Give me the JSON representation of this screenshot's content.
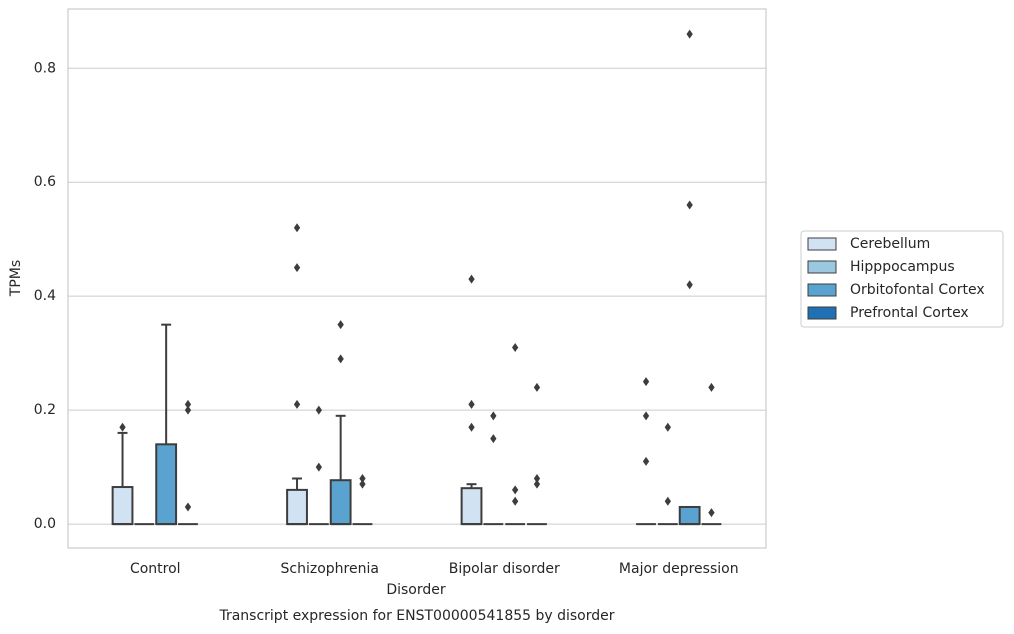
{
  "chart_data": {
    "type": "box",
    "title": "Transcript expression for ENST00000541855 by disorder",
    "xlabel": "Disorder",
    "ylabel": "TPMs",
    "categories": [
      "Control",
      "Schizophrenia",
      "Bipolar disorder",
      "Major depression"
    ],
    "ylim": [
      -0.042,
      0.904
    ],
    "yticks": [
      {
        "value": 0,
        "label": "0.0"
      },
      0.2,
      0.4,
      0.6,
      0.8
    ],
    "grid": true,
    "legend": "right",
    "series": [
      {
        "name": "Cerebellum",
        "color": "#d1e2f3",
        "boxes": [
          {
            "q1": 0,
            "median": 0,
            "q3": 0.065,
            "whislo": 0,
            "whishi": 0.16,
            "fliers": [
              0.17
            ]
          },
          {
            "q1": 0,
            "median": 0,
            "q3": 0.06,
            "whislo": 0,
            "whishi": 0.08,
            "fliers": [
              0.21,
              0.45,
              0.52
            ]
          },
          {
            "q1": 0,
            "median": 0,
            "q3": 0.063,
            "whislo": 0,
            "whishi": 0.07,
            "fliers": [
              0.17,
              0.21,
              0.43
            ]
          },
          {
            "q1": 0,
            "median": 0,
            "q3": 0,
            "whislo": 0,
            "whishi": 0,
            "fliers": [
              0.11,
              0.19,
              0.25
            ]
          }
        ]
      },
      {
        "name": "Hipppocampus",
        "color": "#9ac8e0",
        "boxes": [
          {
            "q1": 0,
            "median": 0,
            "q3": 0,
            "whislo": 0,
            "whishi": 0,
            "fliers": []
          },
          {
            "q1": 0,
            "median": 0,
            "q3": 0,
            "whislo": 0,
            "whishi": 0,
            "fliers": [
              0.1,
              0.2
            ]
          },
          {
            "q1": 0,
            "median": 0,
            "q3": 0,
            "whislo": 0,
            "whishi": 0,
            "fliers": [
              0.15,
              0.19
            ]
          },
          {
            "q1": 0,
            "median": 0,
            "q3": 0,
            "whislo": 0,
            "whishi": 0,
            "fliers": [
              0.04,
              0.17
            ]
          }
        ]
      },
      {
        "name": "Orbitofontal Cortex",
        "color": "#5aa2cf",
        "boxes": [
          {
            "q1": 0,
            "median": 0,
            "q3": 0.14,
            "whislo": 0,
            "whishi": 0.35,
            "fliers": []
          },
          {
            "q1": 0,
            "median": 0,
            "q3": 0.077,
            "whislo": 0,
            "whishi": 0.19,
            "fliers": [
              0.29,
              0.35
            ]
          },
          {
            "q1": 0,
            "median": 0,
            "q3": 0,
            "whislo": 0,
            "whishi": 0,
            "fliers": [
              0.04,
              0.06,
              0.31
            ]
          },
          {
            "q1": 0,
            "median": 0,
            "q3": 0.03,
            "whislo": 0,
            "whishi": 0.03,
            "fliers": [
              0.42,
              0.56,
              0.86
            ]
          }
        ]
      },
      {
        "name": "Prefrontal Cortex",
        "color": "#2070b4",
        "boxes": [
          {
            "q1": 0,
            "median": 0,
            "q3": 0,
            "whislo": 0,
            "whishi": 0,
            "fliers": [
              0.03,
              0.2,
              0.21
            ]
          },
          {
            "q1": 0,
            "median": 0,
            "q3": 0,
            "whislo": 0,
            "whishi": 0,
            "fliers": [
              0.07,
              0.08
            ]
          },
          {
            "q1": 0,
            "median": 0,
            "q3": 0,
            "whislo": 0,
            "whishi": 0,
            "fliers": [
              0.07,
              0.08,
              0.24
            ]
          },
          {
            "q1": 0,
            "median": 0,
            "q3": 0,
            "whislo": 0,
            "whishi": 0,
            "fliers": [
              0.02,
              0.24
            ]
          }
        ]
      }
    ]
  }
}
